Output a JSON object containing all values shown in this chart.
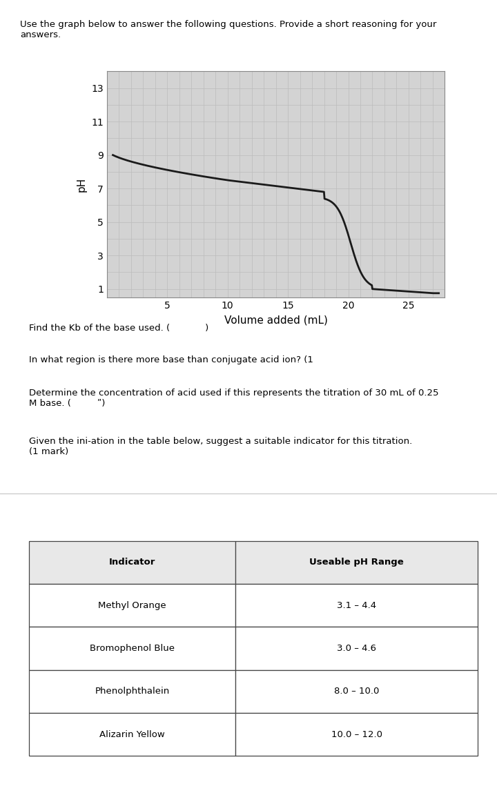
{
  "header_text": "Use the graph below to answer the following questions. Provide a short reasoning for your\nanswers.",
  "xlabel": "Volume added (mL)",
  "ylabel": "pH",
  "yticks": [
    1,
    3,
    5,
    7,
    9,
    11,
    13
  ],
  "xticks": [
    5,
    10,
    15,
    20,
    25
  ],
  "xlim": [
    0,
    28
  ],
  "ylim": [
    0.5,
    14
  ],
  "curve_color": "#1a1a1a",
  "grid_color": "#bbbbbb",
  "plot_bg": "#d3d3d3",
  "q1": "Find the Kb of the base used. (            )",
  "q2": "In what region is there more base than conjugate acid ion? (1",
  "q3": "Determine the concentration of acid used if this represents the titration of 30 mL of 0.25\nM base. (         ʺ)",
  "q4": "Given the ini­ation in the table below, suggest a suitable indicator for this titration.\n(1 mark)",
  "table_headers": [
    "Indicator",
    "Useable pH Range"
  ],
  "table_data": [
    [
      "Methyl Orange",
      "3.1 – 4.4"
    ],
    [
      "Bromophenol Blue",
      "3.0 – 4.6"
    ],
    [
      "Phenolphthalein",
      "8.0 – 10.0"
    ],
    [
      "Alizarin Yellow",
      "10.0 – 12.0"
    ]
  ],
  "header_fontsize": 9.5,
  "axis_label_fontsize": 11,
  "tick_fontsize": 10,
  "question_fontsize": 9.5,
  "table_fontsize": 9.5
}
